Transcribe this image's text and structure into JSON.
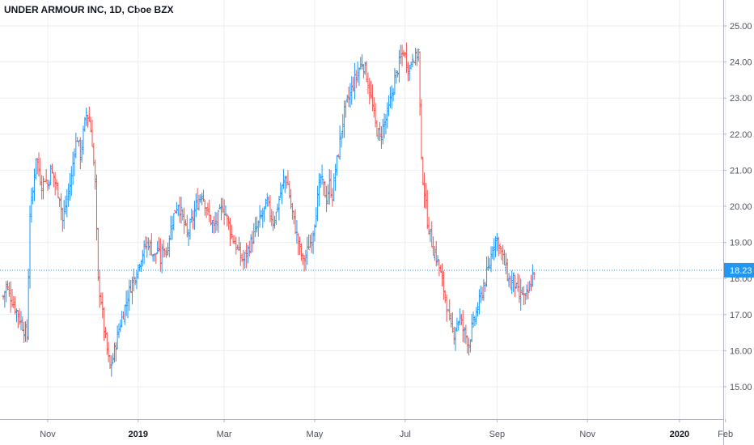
{
  "chart_data": {
    "type": "ohlc",
    "title": "UNDER ARMOUR INC, 1D, Cboe BZX",
    "ylim": [
      14.5,
      25.5
    ],
    "y_ticks": [
      "15.00",
      "16.00",
      "17.00",
      "18.00",
      "19.00",
      "20.00",
      "21.00",
      "22.00",
      "23.00",
      "24.00",
      "25.00"
    ],
    "x_ticks": [
      {
        "label": "Nov",
        "bold": false,
        "day": 30
      },
      {
        "label": "2019",
        "bold": true,
        "day": 91
      },
      {
        "label": "Mar",
        "bold": false,
        "day": 149
      },
      {
        "label": "May",
        "bold": false,
        "day": 210
      },
      {
        "label": "Jul",
        "bold": false,
        "day": 271
      },
      {
        "label": "Sep",
        "bold": false,
        "day": 333
      },
      {
        "label": "Nov",
        "bold": false,
        "day": 394
      },
      {
        "label": "2020",
        "bold": true,
        "day": 456
      },
      {
        "label": "Feb",
        "bold": false,
        "day": 487
      }
    ],
    "last_price": 18.23,
    "last_price_label": "18.23",
    "colors": {
      "up": "#2196f3",
      "down": "#ef5350",
      "last": "#2196f3",
      "grid": "#e9eef3"
    },
    "closes": [
      [
        0,
        17.5
      ],
      [
        2,
        17.8
      ],
      [
        4,
        17.6
      ],
      [
        6,
        17.4
      ],
      [
        8,
        17.2
      ],
      [
        10,
        17.0
      ],
      [
        12,
        16.8
      ],
      [
        14,
        16.6
      ],
      [
        16,
        16.4
      ],
      [
        18,
        19.8
      ],
      [
        20,
        20.4
      ],
      [
        22,
        21.4
      ],
      [
        24,
        21.0
      ],
      [
        26,
        20.6
      ],
      [
        28,
        20.8
      ],
      [
        30,
        20.6
      ],
      [
        32,
        21.0
      ],
      [
        34,
        20.8
      ],
      [
        36,
        20.5
      ],
      [
        38,
        20.3
      ],
      [
        40,
        19.6
      ],
      [
        42,
        20.0
      ],
      [
        44,
        20.4
      ],
      [
        46,
        20.8
      ],
      [
        48,
        21.6
      ],
      [
        50,
        21.9
      ],
      [
        52,
        21.4
      ],
      [
        54,
        22.0
      ],
      [
        56,
        22.6
      ],
      [
        58,
        22.4
      ],
      [
        60,
        21.8
      ],
      [
        62,
        20.6
      ],
      [
        64,
        17.9
      ],
      [
        66,
        17.4
      ],
      [
        68,
        16.6
      ],
      [
        70,
        16.0
      ],
      [
        72,
        15.5
      ],
      [
        74,
        15.8
      ],
      [
        76,
        16.2
      ],
      [
        78,
        16.6
      ],
      [
        80,
        16.9
      ],
      [
        82,
        17.2
      ],
      [
        84,
        17.5
      ],
      [
        86,
        17.8
      ],
      [
        88,
        18.0
      ],
      [
        90,
        18.2
      ],
      [
        92,
        18.5
      ],
      [
        94,
        18.7
      ],
      [
        96,
        18.9
      ],
      [
        98,
        19.0
      ],
      [
        100,
        18.8
      ],
      [
        102,
        18.6
      ],
      [
        104,
        18.8
      ],
      [
        106,
        18.5
      ],
      [
        108,
        18.9
      ],
      [
        110,
        18.7
      ],
      [
        112,
        19.2
      ],
      [
        114,
        19.6
      ],
      [
        116,
        19.9
      ],
      [
        118,
        20.1
      ],
      [
        120,
        19.8
      ],
      [
        122,
        19.5
      ],
      [
        124,
        19.2
      ],
      [
        126,
        19.4
      ],
      [
        128,
        19.7
      ],
      [
        130,
        20.0
      ],
      [
        132,
        20.2
      ],
      [
        134,
        20.4
      ],
      [
        136,
        20.1
      ],
      [
        138,
        19.8
      ],
      [
        140,
        19.6
      ],
      [
        142,
        19.4
      ],
      [
        144,
        19.6
      ],
      [
        146,
        19.8
      ],
      [
        148,
        20.0
      ],
      [
        150,
        19.8
      ],
      [
        152,
        19.5
      ],
      [
        154,
        19.2
      ],
      [
        156,
        19.0
      ],
      [
        158,
        18.8
      ],
      [
        160,
        18.6
      ],
      [
        162,
        18.5
      ],
      [
        164,
        18.7
      ],
      [
        166,
        18.9
      ],
      [
        168,
        19.1
      ],
      [
        170,
        19.3
      ],
      [
        172,
        19.5
      ],
      [
        174,
        19.7
      ],
      [
        176,
        19.9
      ],
      [
        178,
        20.1
      ],
      [
        180,
        19.8
      ],
      [
        182,
        19.6
      ],
      [
        184,
        19.8
      ],
      [
        186,
        20.2
      ],
      [
        188,
        20.5
      ],
      [
        190,
        20.8
      ],
      [
        192,
        20.6
      ],
      [
        194,
        20.0
      ],
      [
        196,
        19.6
      ],
      [
        198,
        19.2
      ],
      [
        200,
        18.8
      ],
      [
        202,
        18.5
      ],
      [
        204,
        18.6
      ],
      [
        206,
        18.9
      ],
      [
        208,
        19.1
      ],
      [
        210,
        19.6
      ],
      [
        212,
        20.2
      ],
      [
        214,
        20.8
      ],
      [
        216,
        20.5
      ],
      [
        218,
        20.2
      ],
      [
        220,
        20.6
      ],
      [
        222,
        20.3
      ],
      [
        224,
        21.0
      ],
      [
        226,
        21.5
      ],
      [
        228,
        22.1
      ],
      [
        230,
        22.6
      ],
      [
        232,
        22.9
      ],
      [
        234,
        23.1
      ],
      [
        236,
        23.4
      ],
      [
        238,
        23.6
      ],
      [
        240,
        23.8
      ],
      [
        242,
        24.0
      ],
      [
        244,
        23.8
      ],
      [
        246,
        23.4
      ],
      [
        248,
        23.0
      ],
      [
        250,
        22.5
      ],
      [
        252,
        22.1
      ],
      [
        254,
        21.9
      ],
      [
        256,
        22.2
      ],
      [
        258,
        22.4
      ],
      [
        260,
        22.7
      ],
      [
        262,
        23.1
      ],
      [
        264,
        23.5
      ],
      [
        266,
        23.8
      ],
      [
        268,
        24.1
      ],
      [
        270,
        24.3
      ],
      [
        272,
        24.0
      ],
      [
        274,
        23.8
      ],
      [
        276,
        24.2
      ],
      [
        278,
        24.1
      ],
      [
        280,
        24.3
      ],
      [
        282,
        21.2
      ],
      [
        284,
        20.4
      ],
      [
        286,
        19.6
      ],
      [
        288,
        19.2
      ],
      [
        290,
        18.8
      ],
      [
        292,
        18.6
      ],
      [
        294,
        18.3
      ],
      [
        296,
        17.9
      ],
      [
        298,
        17.5
      ],
      [
        300,
        17.0
      ],
      [
        302,
        16.6
      ],
      [
        304,
        16.5
      ],
      [
        306,
        16.8
      ],
      [
        308,
        16.9
      ],
      [
        310,
        16.6
      ],
      [
        312,
        16.4
      ],
      [
        314,
        16.2
      ],
      [
        316,
        16.6
      ],
      [
        318,
        16.9
      ],
      [
        320,
        17.2
      ],
      [
        322,
        17.5
      ],
      [
        324,
        17.8
      ],
      [
        326,
        18.1
      ],
      [
        328,
        18.4
      ],
      [
        330,
        18.9
      ],
      [
        332,
        19.1
      ],
      [
        334,
        19.0
      ],
      [
        336,
        18.7
      ],
      [
        338,
        18.4
      ],
      [
        340,
        18.1
      ],
      [
        342,
        17.8
      ],
      [
        344,
        18.0
      ],
      [
        346,
        17.7
      ],
      [
        348,
        17.5
      ],
      [
        350,
        17.6
      ],
      [
        352,
        17.4
      ],
      [
        354,
        17.6
      ],
      [
        356,
        17.9
      ],
      [
        358,
        18.23
      ]
    ]
  }
}
